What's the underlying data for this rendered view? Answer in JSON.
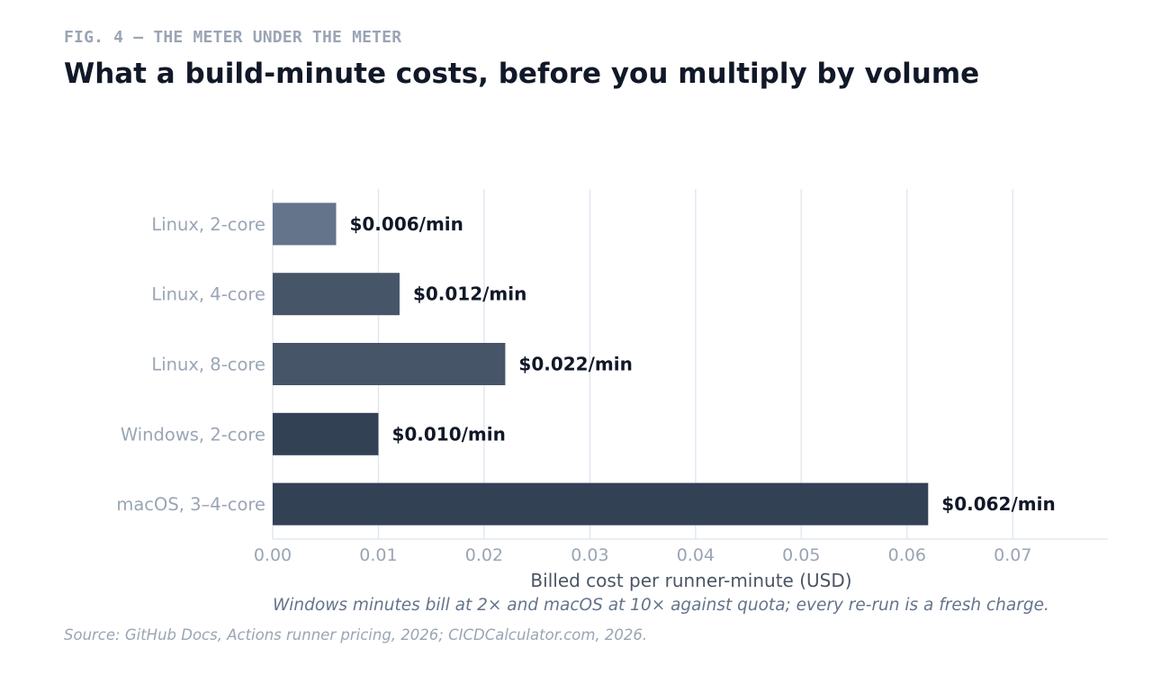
{
  "header": {
    "fig_label": "FIG. 4 — THE METER UNDER THE METER",
    "title": "What a build-minute costs, before you multiply by volume"
  },
  "chart_data": {
    "type": "bar",
    "orientation": "horizontal",
    "categories": [
      "Linux, 2-core",
      "Linux, 4-core",
      "Linux, 8-core",
      "Windows, 2-core",
      "macOS, 3–4-core"
    ],
    "values": [
      0.006,
      0.012,
      0.022,
      0.01,
      0.062
    ],
    "value_labels": [
      "$0.006/min",
      "$0.012/min",
      "$0.022/min",
      "$0.010/min",
      "$0.062/min"
    ],
    "bar_colors": [
      "#64748b",
      "#475569",
      "#475569",
      "#334155",
      "#334155"
    ],
    "xlabel": "Billed cost per runner-minute (USD)",
    "xlim": [
      0,
      0.079
    ],
    "xticks": [
      0,
      0.01,
      0.02,
      0.03,
      0.04,
      0.05,
      0.06,
      0.07
    ],
    "xtick_labels": [
      "0.00",
      "0.01",
      "0.02",
      "0.03",
      "0.04",
      "0.05",
      "0.06",
      "0.07"
    ],
    "grid": "vertical",
    "note": "Windows minutes bill at 2× and macOS at 10× against quota; every re-run is a fresh charge."
  },
  "footer": {
    "source": "Source: GitHub Docs, Actions runner pricing, 2026; CICDCalculator.com, 2026."
  },
  "colors": {
    "title": "#111827",
    "muted": "#9aa5b4",
    "axis_label": "#4b5563",
    "note": "#64748b",
    "grid": "#e2e8f0",
    "value_label": "#111827"
  }
}
